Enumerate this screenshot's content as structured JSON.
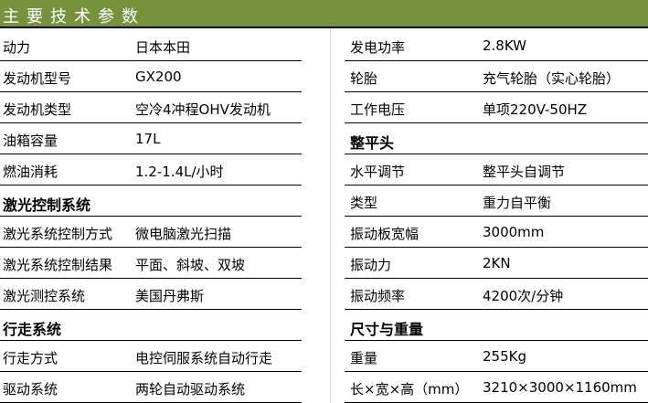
{
  "title": "主要技术参数",
  "left": [
    {
      "k": "动力",
      "v": "日本本田"
    },
    {
      "k": "发动机型号",
      "v": "GX200"
    },
    {
      "k": "发动机类型",
      "v": "空冷4冲程OHV发动机"
    },
    {
      "k": "油箱容量",
      "v": "17L"
    },
    {
      "k": "燃油消耗",
      "v": "1.2-1.4L/小时"
    },
    {
      "k": "激光控制系统",
      "v": "",
      "section": true
    },
    {
      "k": "激光系统控制方式",
      "v": "微电脑激光扫描"
    },
    {
      "k": "激光系统控制结果",
      "v": "平面、斜坡、双坡"
    },
    {
      "k": "激光测控系统",
      "v": "美国丹弗斯"
    },
    {
      "k": "行走系统",
      "v": "",
      "section": true
    },
    {
      "k": "行走方式",
      "v": "电控伺服系统自动行走"
    },
    {
      "k": "驱动系统",
      "v": "两轮自动驱动系统"
    }
  ],
  "right": [
    {
      "k": "发电功率",
      "v": "2.8KW"
    },
    {
      "k": "轮胎",
      "v": "充气轮胎（实心轮胎）"
    },
    {
      "k": "工作电压",
      "v": "单项220V-50HZ"
    },
    {
      "k": "整平头",
      "v": "",
      "section": true
    },
    {
      "k": "水平调节",
      "v": "整平头自调节"
    },
    {
      "k": "类型",
      "v": "重力自平衡"
    },
    {
      "k": "振动板宽幅",
      "v": "3000mm"
    },
    {
      "k": "振动力",
      "v": "2KN"
    },
    {
      "k": "振动频率",
      "v": "4200次/分钟"
    },
    {
      "k": "尺寸与重量",
      "v": "",
      "section": true
    },
    {
      "k": "重量",
      "v": "255Kg"
    },
    {
      "k": "长×宽×高（mm）",
      "v": "3210×3000×1160mm"
    }
  ],
  "colors": {
    "header_bg": "#76923c"
  }
}
